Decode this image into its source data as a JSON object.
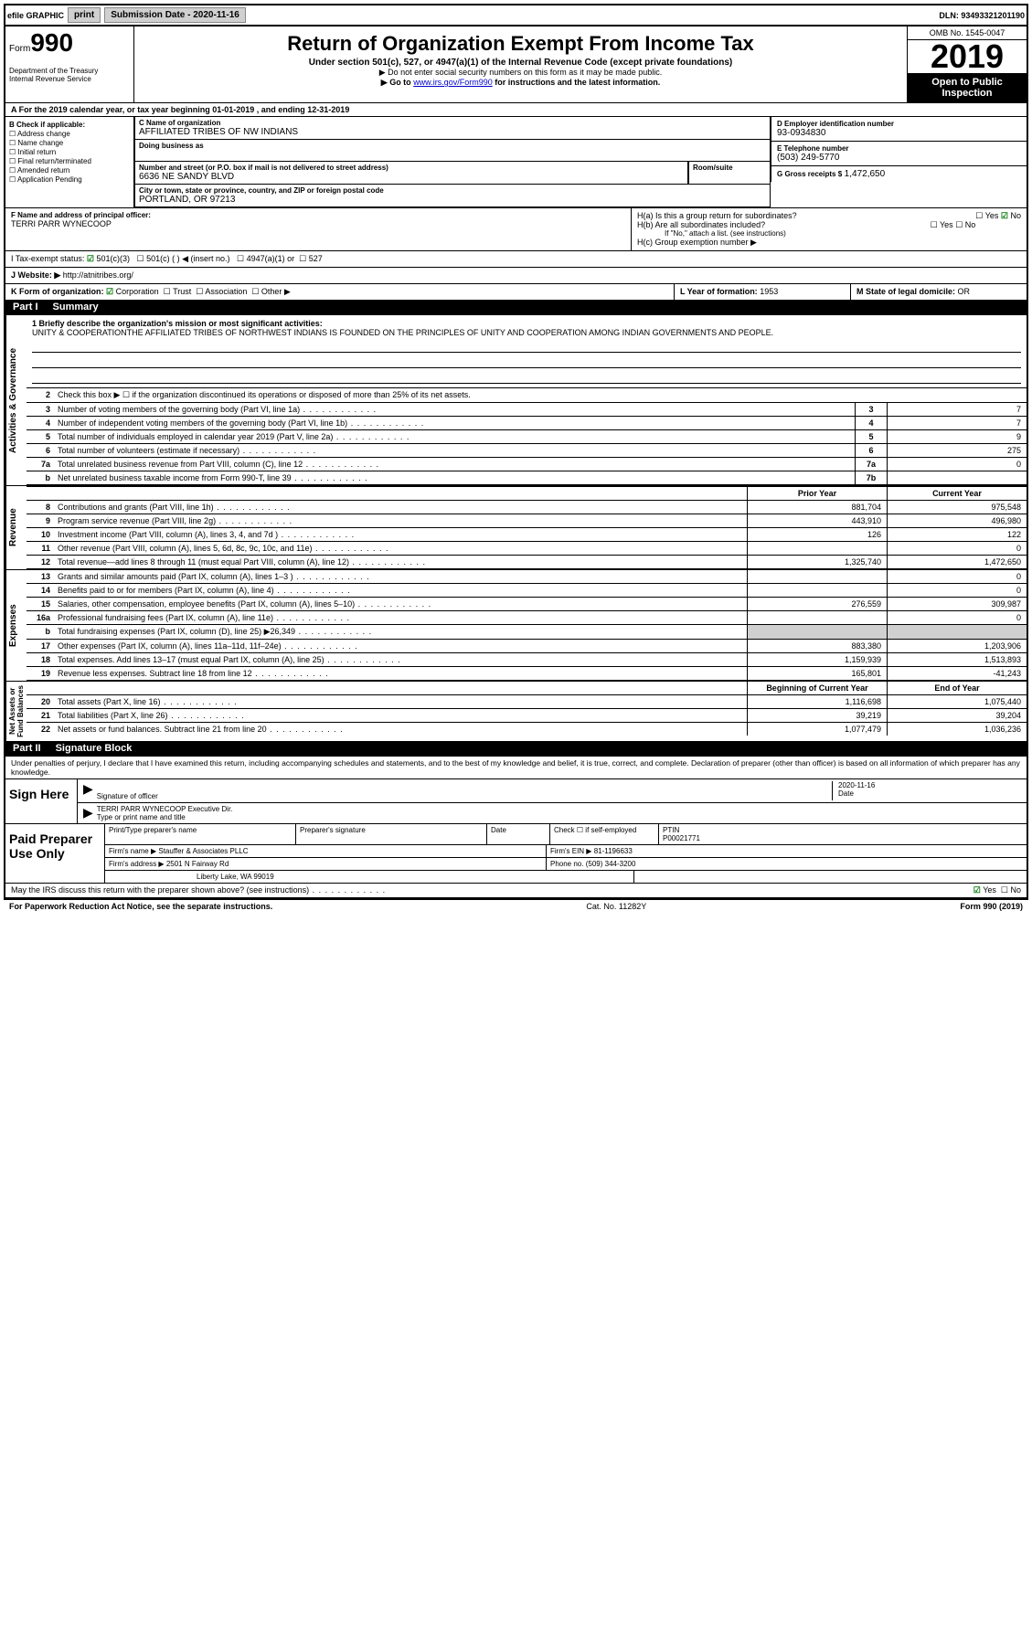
{
  "topbar": {
    "efile": "efile GRAPHIC",
    "print": "print",
    "subdate_label": "Submission Date - 2020-11-16",
    "dln": "DLN: 93493321201190"
  },
  "header": {
    "form_prefix": "Form",
    "form_num": "990",
    "dept": "Department of the Treasury\nInternal Revenue Service",
    "title": "Return of Organization Exempt From Income Tax",
    "subtitle": "Under section 501(c), 527, or 4947(a)(1) of the Internal Revenue Code (except private foundations)",
    "note1": "▶ Do not enter social security numbers on this form as it may be made public.",
    "note2_pre": "▶ Go to ",
    "note2_link": "www.irs.gov/Form990",
    "note2_post": " for instructions and the latest information.",
    "omb": "OMB No. 1545-0047",
    "year": "2019",
    "open": "Open to Public Inspection"
  },
  "line_a": "A  For the 2019 calendar year, or tax year beginning 01-01-2019    , and ending 12-31-2019",
  "b_checks": [
    "Address change",
    "Name change",
    "Initial return",
    "Final return/terminated",
    "Amended return",
    "Application Pending"
  ],
  "b_label": "B Check if applicable:",
  "c": {
    "label": "C Name of organization",
    "name": "AFFILIATED TRIBES OF NW INDIANS",
    "dba_label": "Doing business as",
    "addr_label": "Number and street (or P.O. box if mail is not delivered to street address)",
    "room": "Room/suite",
    "addr": "6636 NE SANDY BLVD",
    "city_label": "City or town, state or province, country, and ZIP or foreign postal code",
    "city": "PORTLAND, OR  97213"
  },
  "d": {
    "label": "D Employer identification number",
    "val": "93-0934830"
  },
  "e": {
    "label": "E Telephone number",
    "val": "(503) 249-5770"
  },
  "g": {
    "label": "G Gross receipts $",
    "val": "1,472,650"
  },
  "f": {
    "label": "F  Name and address of principal officer:",
    "val": "TERRI PARR WYNECOOP"
  },
  "h": {
    "a_label": "H(a)  Is this a group return for subordinates?",
    "a_yes": "Yes",
    "a_no": "No",
    "b_label": "H(b)  Are all subordinates included?",
    "b_note": "If \"No,\" attach a list. (see instructions)",
    "c_label": "H(c)  Group exemption number ▶"
  },
  "i": {
    "label": "I   Tax-exempt status:",
    "opts": [
      "501(c)(3)",
      "501(c) (  ) ◀ (insert no.)",
      "4947(a)(1) or",
      "527"
    ]
  },
  "j": {
    "label": "J   Website: ▶",
    "val": "http://atnitribes.org/"
  },
  "k": {
    "label": "K Form of organization:",
    "opts": [
      "Corporation",
      "Trust",
      "Association",
      "Other ▶"
    ]
  },
  "l": {
    "label": "L Year of formation:",
    "val": "1953"
  },
  "m": {
    "label": "M State of legal domicile:",
    "val": "OR"
  },
  "part1": {
    "num": "Part I",
    "title": "Summary"
  },
  "mission": {
    "label": "1   Briefly describe the organization's mission or most significant activities:",
    "text": "UNITY & COOPERATIONTHE AFFILIATED TRIBES OF NORTHWEST INDIANS IS FOUNDED ON THE PRINCIPLES OF UNITY AND COOPERATION AMONG INDIAN GOVERNMENTS AND PEOPLE."
  },
  "line2": "Check this box ▶ ☐  if the organization discontinued its operations or disposed of more than 25% of its net assets.",
  "activities_lines": [
    {
      "n": "3",
      "d": "Number of voting members of the governing body (Part VI, line 1a)",
      "box": "3",
      "v": "7"
    },
    {
      "n": "4",
      "d": "Number of independent voting members of the governing body (Part VI, line 1b)",
      "box": "4",
      "v": "7"
    },
    {
      "n": "5",
      "d": "Total number of individuals employed in calendar year 2019 (Part V, line 2a)",
      "box": "5",
      "v": "9"
    },
    {
      "n": "6",
      "d": "Total number of volunteers (estimate if necessary)",
      "box": "6",
      "v": "275"
    },
    {
      "n": "7a",
      "d": "Total unrelated business revenue from Part VIII, column (C), line 12",
      "box": "7a",
      "v": "0"
    },
    {
      "n": "b",
      "d": "Net unrelated business taxable income from Form 990-T, line 39",
      "box": "7b",
      "v": ""
    }
  ],
  "col_headers": {
    "prior": "Prior Year",
    "current": "Current Year"
  },
  "revenue_lines": [
    {
      "n": "8",
      "d": "Contributions and grants (Part VIII, line 1h)",
      "p": "881,704",
      "c": "975,548"
    },
    {
      "n": "9",
      "d": "Program service revenue (Part VIII, line 2g)",
      "p": "443,910",
      "c": "496,980"
    },
    {
      "n": "10",
      "d": "Investment income (Part VIII, column (A), lines 3, 4, and 7d )",
      "p": "126",
      "c": "122"
    },
    {
      "n": "11",
      "d": "Other revenue (Part VIII, column (A), lines 5, 6d, 8c, 9c, 10c, and 11e)",
      "p": "",
      "c": "0"
    },
    {
      "n": "12",
      "d": "Total revenue—add lines 8 through 11 (must equal Part VIII, column (A), line 12)",
      "p": "1,325,740",
      "c": "1,472,650"
    }
  ],
  "expense_lines": [
    {
      "n": "13",
      "d": "Grants and similar amounts paid (Part IX, column (A), lines 1–3 )",
      "p": "",
      "c": "0"
    },
    {
      "n": "14",
      "d": "Benefits paid to or for members (Part IX, column (A), line 4)",
      "p": "",
      "c": "0"
    },
    {
      "n": "15",
      "d": "Salaries, other compensation, employee benefits (Part IX, column (A), lines 5–10)",
      "p": "276,559",
      "c": "309,987"
    },
    {
      "n": "16a",
      "d": "Professional fundraising fees (Part IX, column (A), line 11e)",
      "p": "",
      "c": "0"
    },
    {
      "n": "b",
      "d": "Total fundraising expenses (Part IX, column (D), line 25) ▶26,349",
      "p": "shade",
      "c": "shade"
    },
    {
      "n": "17",
      "d": "Other expenses (Part IX, column (A), lines 11a–11d, 11f–24e)",
      "p": "883,380",
      "c": "1,203,906"
    },
    {
      "n": "18",
      "d": "Total expenses. Add lines 13–17 (must equal Part IX, column (A), line 25)",
      "p": "1,159,939",
      "c": "1,513,893"
    },
    {
      "n": "19",
      "d": "Revenue less expenses. Subtract line 18 from line 12",
      "p": "165,801",
      "c": "-41,243"
    }
  ],
  "net_headers": {
    "b": "Beginning of Current Year",
    "e": "End of Year"
  },
  "net_lines": [
    {
      "n": "20",
      "d": "Total assets (Part X, line 16)",
      "p": "1,116,698",
      "c": "1,075,440"
    },
    {
      "n": "21",
      "d": "Total liabilities (Part X, line 26)",
      "p": "39,219",
      "c": "39,204"
    },
    {
      "n": "22",
      "d": "Net assets or fund balances. Subtract line 21 from line 20",
      "p": "1,077,479",
      "c": "1,036,236"
    }
  ],
  "vert": {
    "act": "Activities & Governance",
    "rev": "Revenue",
    "exp": "Expenses",
    "net": "Net Assets or\nFund Balances"
  },
  "part2": {
    "num": "Part II",
    "title": "Signature Block"
  },
  "sig": {
    "declaration": "Under penalties of perjury, I declare that I have examined this return, including accompanying schedules and statements, and to the best of my knowledge and belief, it is true, correct, and complete. Declaration of preparer (other than officer) is based on all information of which preparer has any knowledge.",
    "sign_here": "Sign Here",
    "sig_officer": "Signature of officer",
    "date_label": "Date",
    "date_val": "2020-11-16",
    "name": "TERRI PARR WYNECOOP  Executive Dir.",
    "type_label": "Type or print name and title"
  },
  "prep": {
    "label": "Paid Preparer Use Only",
    "h1": "Print/Type preparer's name",
    "h2": "Preparer's signature",
    "h3": "Date",
    "h4": "Check ☐  if self-employed",
    "h5": "PTIN",
    "ptin": "P00021771",
    "firm_label": "Firm's name    ▶",
    "firm": "Stauffer & Associates PLLC",
    "ein_label": "Firm's EIN ▶",
    "ein": "81-1196633",
    "addr_label": "Firm's address ▶",
    "addr": "2501 N Fairway Rd",
    "addr2": "Liberty Lake, WA  99019",
    "phone_label": "Phone no.",
    "phone": "(509) 344-3200"
  },
  "discuss": {
    "q": "May the IRS discuss this return with the preparer shown above? (see instructions)",
    "yes": "Yes",
    "no": "No"
  },
  "footer": {
    "left": "For Paperwork Reduction Act Notice, see the separate instructions.",
    "mid": "Cat. No. 11282Y",
    "right": "Form 990 (2019)"
  }
}
